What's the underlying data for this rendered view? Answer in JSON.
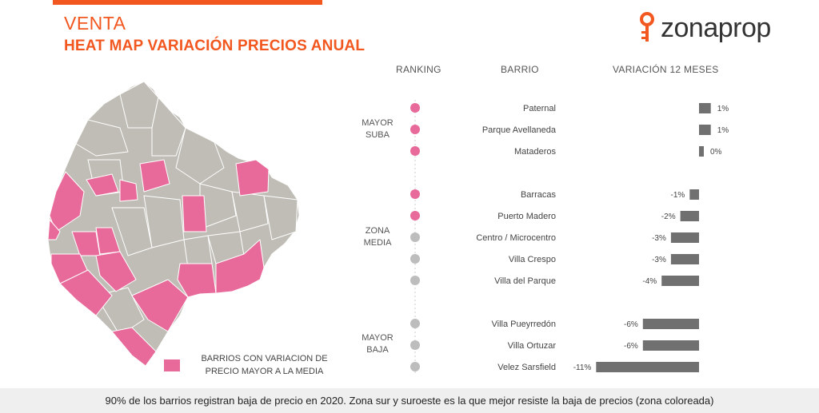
{
  "header": {
    "title": "VENTA",
    "subtitle": "HEAT MAP VARIACIÓN PRECIOS ANUAL"
  },
  "brand": {
    "logo_text": "zonaprop",
    "logo_icon": "key-icon"
  },
  "colors": {
    "accent": "#f2571f",
    "pink": "#e86a9a",
    "gray_dot": "#bdbdbd",
    "bar": "#707070",
    "map_gray": "#bfbdb5"
  },
  "columns": {
    "ranking": "RANKING",
    "barrio": "BARRIO",
    "variacion": "VARIACIÓN 12 MESES"
  },
  "groups": [
    {
      "line1": "MAYOR",
      "line2": "SUBA"
    },
    {
      "line1": "ZONA",
      "line2": "MEDIA"
    },
    {
      "line1": "MAYOR",
      "line2": "BAJA"
    }
  ],
  "legend": {
    "line1": "BARRIOS CON VARIACION DE",
    "line2": "PRECIO MAYOR A LA MEDIA"
  },
  "footer": {
    "text": "90% de los barrios registran baja de precio en 2020. Zona sur y suroeste es la que mejor resiste la baja de precios (zona coloreada)"
  },
  "chart_data": {
    "type": "bar",
    "title": "HEAT MAP VARIACIÓN PRECIOS ANUAL",
    "xlabel": "VARIACIÓN 12 MESES",
    "ylabel": "BARRIO",
    "categories": [
      "Paternal",
      "Parque Avellaneda",
      "Mataderos",
      "Barracas",
      "Puerto Madero",
      "Centro / Microcentro",
      "Villa Crespo",
      "Villa del Parque",
      "Villa Pueyrredón",
      "Villa Ortuzar",
      "Velez Sarsfield"
    ],
    "values": [
      1,
      1,
      0,
      -1,
      -2,
      -3,
      -3,
      -4,
      -6,
      -6,
      -11
    ],
    "labels": [
      "1%",
      "1%",
      "0%",
      "-1%",
      "-2%",
      "-3%",
      "-3%",
      "-4%",
      "-6%",
      "-6%",
      "-11%"
    ],
    "above_mean": [
      true,
      true,
      true,
      true,
      true,
      false,
      false,
      false,
      false,
      false,
      false
    ],
    "groups": [
      "MAYOR SUBA",
      "MAYOR SUBA",
      "MAYOR SUBA",
      "ZONA MEDIA",
      "ZONA MEDIA",
      "ZONA MEDIA",
      "ZONA MEDIA",
      "ZONA MEDIA",
      "MAYOR BAJA",
      "MAYOR BAJA",
      "MAYOR BAJA"
    ],
    "grid": false,
    "legend": "bottom-left"
  }
}
